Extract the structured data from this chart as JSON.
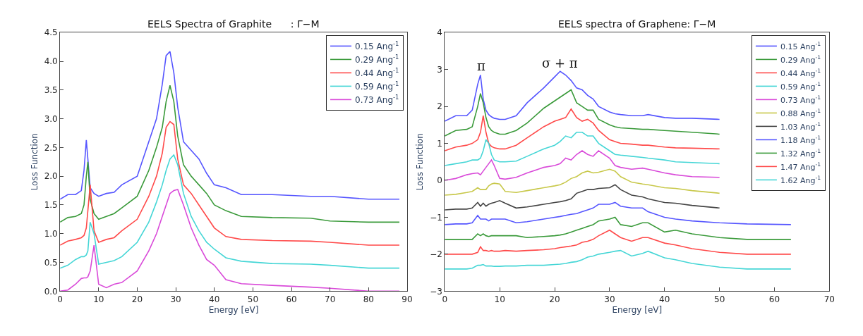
{
  "chart_data": [
    {
      "type": "line",
      "title": "EELS Spectra of Graphite      : Γ−M",
      "xlabel": "Energy [eV]",
      "ylabel": "Loss Function",
      "x": [
        0,
        2,
        4,
        5.5,
        6.2,
        6.8,
        7.2,
        7.8,
        8.8,
        10,
        12,
        14,
        16,
        20,
        23,
        25,
        26.5,
        27.5,
        28.5,
        29.5,
        30.5,
        32,
        34,
        36,
        38,
        40,
        43,
        47,
        55,
        65,
        70,
        80,
        88
      ],
      "series": [
        {
          "name": "0.15 Ang$^{-1}$",
          "color": "#5555ff",
          "values": [
            1.6,
            1.68,
            1.68,
            1.75,
            2.1,
            2.63,
            2.3,
            1.8,
            1.7,
            1.65,
            1.7,
            1.72,
            1.85,
            2.0,
            2.6,
            3.0,
            3.6,
            4.1,
            4.17,
            3.8,
            3.2,
            2.6,
            2.45,
            2.3,
            2.05,
            1.85,
            1.8,
            1.68,
            1.68,
            1.65,
            1.65,
            1.6,
            1.6
          ]
        },
        {
          "name": "0.29 Ang$^{-1}$",
          "color": "#3a9a3a",
          "values": [
            1.2,
            1.28,
            1.3,
            1.35,
            1.5,
            2.0,
            2.25,
            1.6,
            1.35,
            1.25,
            1.3,
            1.35,
            1.45,
            1.65,
            2.1,
            2.5,
            2.85,
            3.3,
            3.58,
            3.3,
            2.7,
            2.2,
            2.0,
            1.85,
            1.7,
            1.5,
            1.4,
            1.3,
            1.28,
            1.27,
            1.22,
            1.2,
            1.2
          ]
        },
        {
          "name": "0.44 Ang$^{-1}$",
          "color": "#ff4a4a",
          "values": [
            0.8,
            0.87,
            0.9,
            0.93,
            0.97,
            1.1,
            1.4,
            1.85,
            1.05,
            0.85,
            0.9,
            0.93,
            1.05,
            1.25,
            1.65,
            2.0,
            2.4,
            2.85,
            2.95,
            2.9,
            2.3,
            1.85,
            1.7,
            1.5,
            1.3,
            1.1,
            0.95,
            0.9,
            0.88,
            0.87,
            0.85,
            0.8,
            0.8
          ]
        },
        {
          "name": "0.59 Ang$^{-1}$",
          "color": "#45d6d6",
          "values": [
            0.4,
            0.45,
            0.55,
            0.6,
            0.6,
            0.63,
            0.7,
            1.2,
            1.0,
            0.47,
            0.5,
            0.53,
            0.6,
            0.85,
            1.2,
            1.55,
            1.85,
            2.1,
            2.3,
            2.37,
            2.2,
            1.7,
            1.3,
            1.05,
            0.85,
            0.73,
            0.58,
            0.52,
            0.48,
            0.47,
            0.45,
            0.4,
            0.4
          ]
        },
        {
          "name": "0.73 Ang$^{-1}$",
          "color": "#d94ad9",
          "values": [
            0,
            0.02,
            0.12,
            0.22,
            0.23,
            0.23,
            0.25,
            0.35,
            0.8,
            0.12,
            0.06,
            0.12,
            0.15,
            0.35,
            0.7,
            1.0,
            1.3,
            1.5,
            1.7,
            1.75,
            1.77,
            1.5,
            1.1,
            0.8,
            0.55,
            0.45,
            0.2,
            0.13,
            0.1,
            0.07,
            0.05,
            0,
            0
          ]
        }
      ],
      "xlim": [
        0,
        90
      ],
      "xticks": [
        0,
        10,
        20,
        30,
        40,
        50,
        60,
        70,
        80,
        90
      ],
      "ylim": [
        0,
        4.5
      ],
      "yticks": [
        {
          "value": 0,
          "label": "0.0"
        },
        0.5,
        {
          "value": 1,
          "label": "1.0"
        },
        1.5,
        {
          "value": 2,
          "label": "2.0"
        },
        2.5,
        {
          "value": 3,
          "label": "3.0"
        },
        3.5,
        {
          "value": 4,
          "label": "4.0"
        },
        4.5
      ],
      "legend": "top right",
      "marker": "none",
      "line_style": "solid"
    },
    {
      "type": "line",
      "title": "EELS spectra of Graphene: Γ−M",
      "xlabel": "Energy [eV]",
      "ylabel": "Loss Function",
      "annotations": [
        "π",
        "σ + π"
      ],
      "x": [
        0,
        2,
        4,
        5,
        6,
        6.5,
        7,
        7.5,
        8,
        8.5,
        9,
        10,
        11,
        13,
        15,
        18,
        20,
        21,
        22,
        23,
        24,
        25,
        26,
        27,
        28,
        30,
        31,
        32,
        34,
        36,
        37,
        40,
        42,
        45,
        50,
        55,
        63
      ],
      "series": [
        {
          "name": "0.15 Ang$^{-1}$",
          "color": "#5555ff",
          "values": [
            1.6,
            1.75,
            1.75,
            1.9,
            2.6,
            2.85,
            2.2,
            1.9,
            1.78,
            1.72,
            1.68,
            1.65,
            1.65,
            1.75,
            2.1,
            2.5,
            2.8,
            2.95,
            2.85,
            2.7,
            2.5,
            2.45,
            2.3,
            2.2,
            2.0,
            1.85,
            1.8,
            1.78,
            1.75,
            1.75,
            1.78,
            1.7,
            1.68,
            1.68,
            1.65,
            null,
            null
          ]
        },
        {
          "name": "0.29 Ang$^{-1}$",
          "color": "#3a9a3a",
          "values": [
            1.2,
            1.35,
            1.38,
            1.45,
            2.0,
            2.35,
            2.1,
            1.7,
            1.45,
            1.35,
            1.3,
            1.25,
            1.25,
            1.35,
            1.55,
            1.95,
            2.15,
            2.25,
            2.35,
            2.45,
            2.1,
            2.0,
            1.9,
            1.9,
            1.65,
            1.5,
            1.45,
            1.42,
            1.4,
            1.38,
            1.38,
            1.35,
            1.33,
            1.3,
            1.25,
            null,
            null
          ]
        },
        {
          "name": "0.44 Ang$^{-1}$",
          "color": "#ff4a4a",
          "values": [
            0.8,
            0.9,
            0.95,
            1.0,
            1.1,
            1.3,
            1.75,
            1.3,
            1.0,
            0.92,
            0.88,
            0.85,
            0.85,
            0.95,
            1.15,
            1.45,
            1.6,
            1.65,
            1.7,
            1.93,
            1.7,
            1.6,
            1.65,
            1.55,
            1.35,
            1.1,
            1.05,
            1.0,
            0.98,
            0.95,
            0.95,
            0.9,
            0.88,
            0.87,
            0.85,
            null,
            null
          ]
        },
        {
          "name": "0.59 Ang$^{-1}$",
          "color": "#45d6d6",
          "values": [
            0.4,
            0.45,
            0.5,
            0.55,
            0.55,
            0.6,
            0.8,
            1.1,
            1.0,
            0.7,
            0.55,
            0.5,
            0.5,
            0.52,
            0.65,
            0.85,
            0.95,
            1.05,
            1.2,
            1.15,
            1.3,
            1.3,
            1.2,
            1.2,
            1.0,
            0.8,
            0.7,
            0.68,
            0.65,
            0.62,
            0.6,
            0.55,
            0.5,
            0.48,
            0.45,
            null,
            null
          ]
        },
        {
          "name": "0.73 Ang$^{-1}$",
          "color": "#d94ad9",
          "values": [
            0,
            0.05,
            0.15,
            0.18,
            0.2,
            0.15,
            0.25,
            0.35,
            0.45,
            0.55,
            0.4,
            0.05,
            0.03,
            0.08,
            0.2,
            0.35,
            0.4,
            0.45,
            0.6,
            0.55,
            0.7,
            0.8,
            0.7,
            0.65,
            0.8,
            0.6,
            0.4,
            0.35,
            0.3,
            0.33,
            0.3,
            0.2,
            0.15,
            0.1,
            0.08,
            null,
            null
          ]
        },
        {
          "name": "0.88 Ang$^{-1}$",
          "color": "#c8c84a",
          "values": [
            -0.4,
            -0.38,
            -0.33,
            -0.3,
            -0.2,
            -0.25,
            -0.25,
            -0.25,
            -0.15,
            -0.1,
            -0.08,
            -0.1,
            -0.3,
            -0.33,
            -0.28,
            -0.2,
            -0.15,
            -0.12,
            -0.05,
            0.05,
            0.1,
            0.2,
            0.25,
            0.2,
            0.22,
            0.3,
            0.25,
            0.1,
            -0.05,
            -0.1,
            -0.12,
            -0.2,
            -0.22,
            -0.28,
            -0.35,
            null,
            null
          ]
        },
        {
          "name": "1.03 Ang$^{-1}$",
          "color": "#444444",
          "values": [
            -0.8,
            -0.78,
            -0.78,
            -0.75,
            -0.6,
            -0.7,
            -0.62,
            -0.7,
            -0.65,
            -0.62,
            -0.6,
            -0.55,
            -0.62,
            -0.75,
            -0.72,
            -0.65,
            -0.6,
            -0.58,
            -0.55,
            -0.5,
            -0.35,
            -0.3,
            -0.25,
            -0.25,
            -0.22,
            -0.2,
            -0.12,
            -0.25,
            -0.4,
            -0.45,
            -0.5,
            -0.6,
            -0.62,
            -0.68,
            -0.75,
            null,
            null
          ]
        },
        {
          "name": "1.18 Ang$^{-1}$",
          "color": "#5555ff",
          "values": [
            -1.2,
            -1.18,
            -1.18,
            -1.15,
            -0.95,
            -1.05,
            -1.05,
            -1.05,
            -1.1,
            -1.05,
            -1.05,
            -1.05,
            -1.05,
            -1.15,
            -1.12,
            -1.05,
            -1.0,
            -0.98,
            -0.95,
            -0.92,
            -0.9,
            -0.85,
            -0.8,
            -0.75,
            -0.65,
            -0.65,
            -0.6,
            -0.7,
            -0.75,
            -0.75,
            -0.85,
            -1.0,
            -1.05,
            -1.1,
            -1.15,
            -1.18,
            -1.2
          ]
        },
        {
          "name": "1.32 Ang$^{-1}$",
          "color": "#3a9a3a",
          "values": [
            -1.6,
            -1.6,
            -1.6,
            -1.6,
            -1.45,
            -1.5,
            -1.45,
            -1.5,
            -1.52,
            -1.5,
            -1.5,
            -1.5,
            -1.5,
            -1.5,
            -1.55,
            -1.52,
            -1.5,
            -1.48,
            -1.45,
            -1.4,
            -1.35,
            -1.3,
            -1.25,
            -1.2,
            -1.1,
            -1.05,
            -1.0,
            -1.2,
            -1.25,
            -1.15,
            -1.15,
            -1.4,
            -1.35,
            -1.45,
            -1.55,
            -1.6,
            -1.6
          ]
        },
        {
          "name": "1.47 Ang$^{-1}$",
          "color": "#ff4a4a",
          "values": [
            -2.0,
            -2.0,
            -2.0,
            -2.0,
            -1.95,
            -1.8,
            -1.9,
            -1.9,
            -1.92,
            -1.9,
            -1.92,
            -1.92,
            -1.9,
            -1.92,
            -1.9,
            -1.88,
            -1.85,
            -1.82,
            -1.8,
            -1.78,
            -1.75,
            -1.68,
            -1.65,
            -1.6,
            -1.5,
            -1.35,
            -1.45,
            -1.55,
            -1.65,
            -1.55,
            -1.55,
            -1.7,
            -1.75,
            -1.85,
            -1.95,
            -2.0,
            -2.0
          ]
        },
        {
          "name": "1.62 Ang$^{-1}$",
          "color": "#45d6d6",
          "values": [
            -2.4,
            -2.4,
            -2.4,
            -2.38,
            -2.3,
            -2.3,
            -2.28,
            -2.32,
            -2.32,
            -2.32,
            -2.33,
            -2.33,
            -2.32,
            -2.32,
            -2.3,
            -2.3,
            -2.28,
            -2.27,
            -2.25,
            -2.22,
            -2.2,
            -2.15,
            -2.08,
            -2.05,
            -2.0,
            -1.95,
            -1.92,
            -1.9,
            -2.05,
            -1.98,
            -1.92,
            -2.1,
            -2.15,
            -2.25,
            -2.35,
            -2.4,
            -2.4
          ]
        }
      ],
      "xlim": [
        0,
        70
      ],
      "xticks": [
        0,
        10,
        20,
        30,
        40,
        50,
        60,
        70
      ],
      "ylim": [
        -3,
        4
      ],
      "yticks": [
        -3,
        -2,
        -1,
        0,
        1,
        2,
        3,
        4
      ],
      "legend": "top right",
      "marker": "none",
      "line_style": "solid"
    }
  ]
}
